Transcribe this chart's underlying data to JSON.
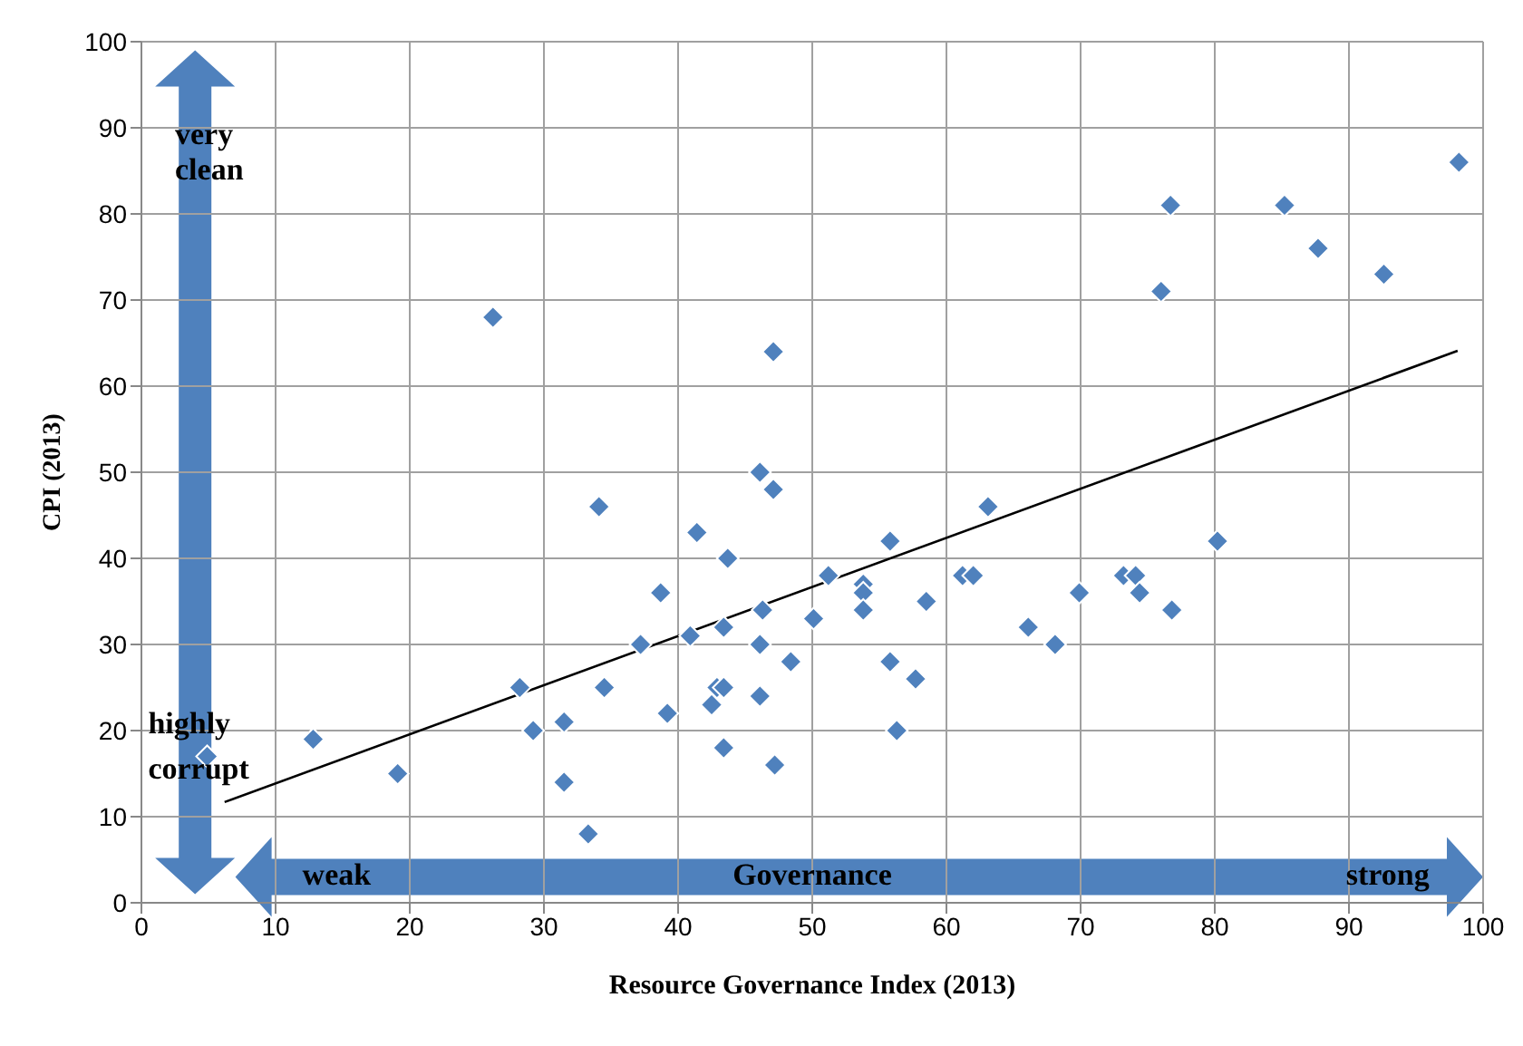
{
  "chart_data": {
    "type": "scatter",
    "xlabel": "Resource Governance Index (2013)",
    "ylabel": "CPI (2013)",
    "xlim": [
      0,
      100
    ],
    "xticks": [
      0,
      10,
      20,
      30,
      40,
      50,
      60,
      70,
      80,
      90,
      100
    ],
    "ylim": [
      0,
      100
    ],
    "yticks": [
      0,
      10,
      20,
      30,
      40,
      50,
      60,
      70,
      80,
      90,
      100
    ],
    "grid": true,
    "legend": false,
    "marker": "diamond",
    "annotations": [
      "very clean",
      "highly corrupt",
      "weak",
      "Governance",
      "strong"
    ],
    "series": [
      {
        "color": "#4f81bd",
        "x": [
          4.9,
          12.8,
          19.1,
          26.2,
          28.2,
          29.2,
          31.5,
          31.5,
          33.3,
          34.1,
          34.5,
          37.2,
          38.7,
          39.2,
          40.9,
          41.4,
          42.5,
          42.9,
          43.4,
          43.4,
          43.7,
          43.4,
          46.1,
          46.1,
          46.3,
          46.1,
          47.1,
          47.1,
          47.2,
          48.4,
          50.1,
          51.2,
          53.8,
          53.8,
          53.8,
          55.8,
          55.8,
          56.3,
          57.7,
          58.5,
          61.2,
          62.0,
          63.1,
          66.1,
          68.1,
          69.9,
          73.2,
          74.1,
          74.4,
          76.0,
          76.7,
          76.8,
          80.2,
          85.2,
          87.7,
          92.6,
          98.2
        ],
        "values": [
          17,
          19,
          15,
          68,
          25,
          20,
          21,
          14,
          8,
          46,
          25,
          30,
          36,
          22,
          31,
          43,
          23,
          25,
          25,
          32,
          40,
          18,
          50,
          30,
          34,
          24,
          64,
          48,
          16,
          28,
          33,
          38,
          37,
          36,
          34,
          42,
          28,
          20,
          26,
          35,
          38,
          38,
          46,
          32,
          30,
          36,
          38,
          38,
          36,
          71,
          81,
          34,
          42,
          81,
          76,
          73,
          86
        ]
      },
      {
        "type": "line",
        "color": "#000000",
        "marker": "none",
        "line_style": "solid",
        "x": [
          6.2,
          98.1
        ],
        "values": [
          11.7,
          64.1
        ]
      }
    ]
  }
}
